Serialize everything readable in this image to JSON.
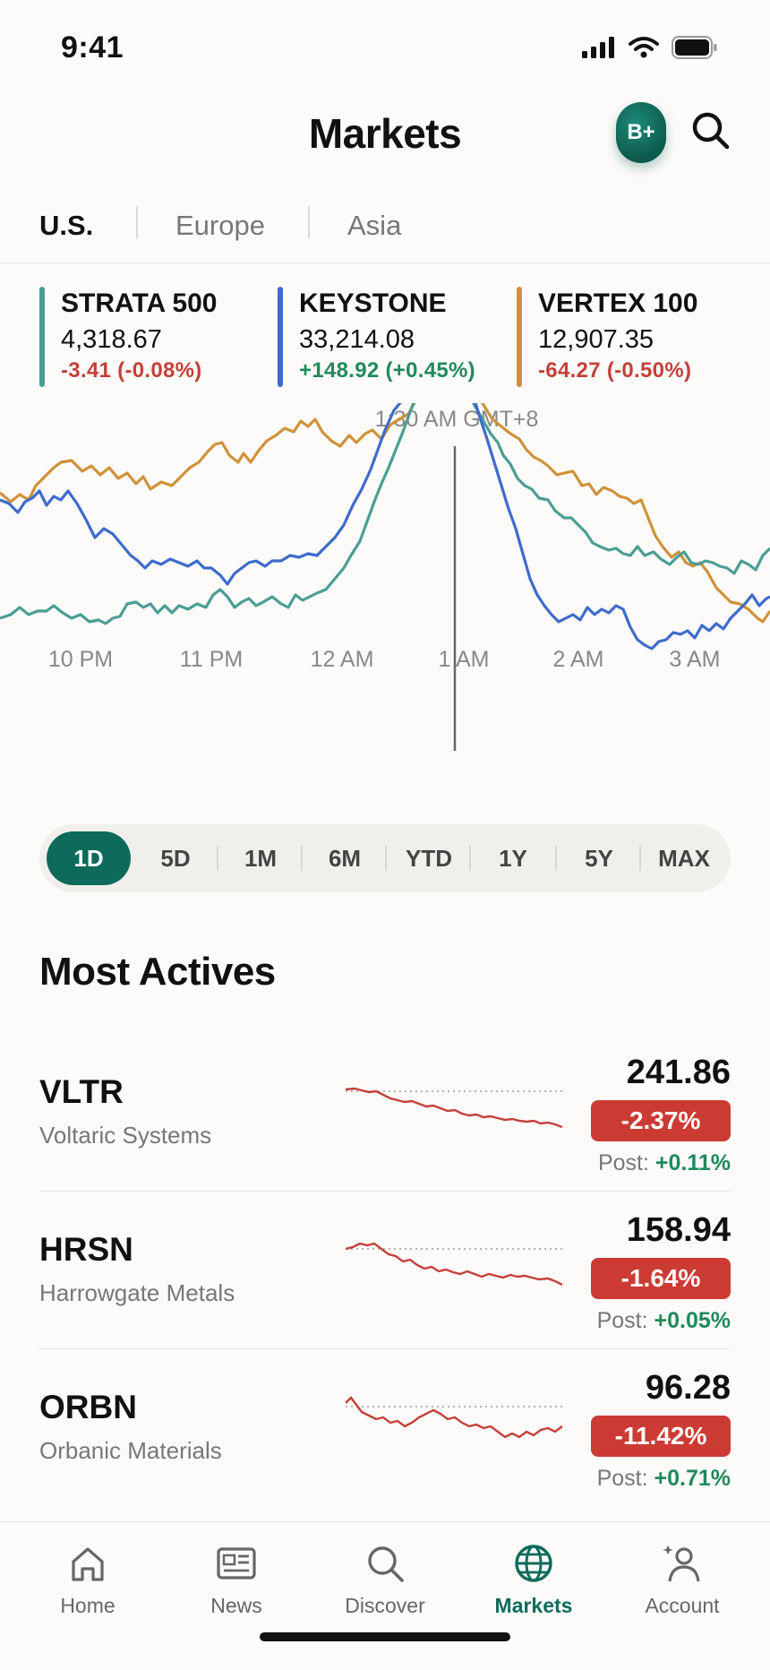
{
  "status_bar": {
    "time": "9:41"
  },
  "header": {
    "title": "Markets",
    "avatar_text": "B+"
  },
  "region_tabs": [
    "U.S.",
    "Europe",
    "Asia"
  ],
  "indices": [
    {
      "name": "STRATA 500",
      "value": "4,318.67",
      "change": "-3.41 (-0.08%)",
      "color": "#4a9e94",
      "direction": "down"
    },
    {
      "name": "KEYSTONE",
      "value": "33,214.08",
      "change": "+148.92 (+0.45%)",
      "color": "#3e6bcc",
      "direction": "up"
    },
    {
      "name": "VERTEX 100",
      "value": "12,907.35",
      "change": "-64.27 (-0.50%)",
      "color": "#cf923a",
      "direction": "down"
    }
  ],
  "chart": {
    "cursor_label": "1:30 AM GMT+8",
    "time_labels": [
      "10 PM",
      "11 PM",
      "12 AM",
      "1 AM",
      "2 AM",
      "3 AM"
    ]
  },
  "ranges": [
    "1D",
    "5D",
    "1M",
    "6M",
    "YTD",
    "1Y",
    "5Y",
    "MAX"
  ],
  "most_actives": {
    "title": "Most Actives",
    "stocks": [
      {
        "ticker": "VLTR",
        "company": "Voltaric Systems",
        "price": "241.86",
        "change": "-2.37%",
        "post_label": "Post:",
        "post_change": "+0.11%"
      },
      {
        "ticker": "HRSN",
        "company": "Harrowgate Metals",
        "price": "158.94",
        "change": "-1.64%",
        "post_label": "Post:",
        "post_change": "+0.05%"
      },
      {
        "ticker": "ORBN",
        "company": "Orbanic Materials",
        "price": "96.28",
        "change": "-11.42%",
        "post_label": "Post:",
        "post_change": "+0.71%"
      }
    ]
  },
  "bottom_nav": [
    "Home",
    "News",
    "Discover",
    "Markets",
    "Account"
  ],
  "colors": {
    "accent": "#0e6b5c",
    "negative": "#cc3b33",
    "positive": "#1f8a5b"
  }
}
